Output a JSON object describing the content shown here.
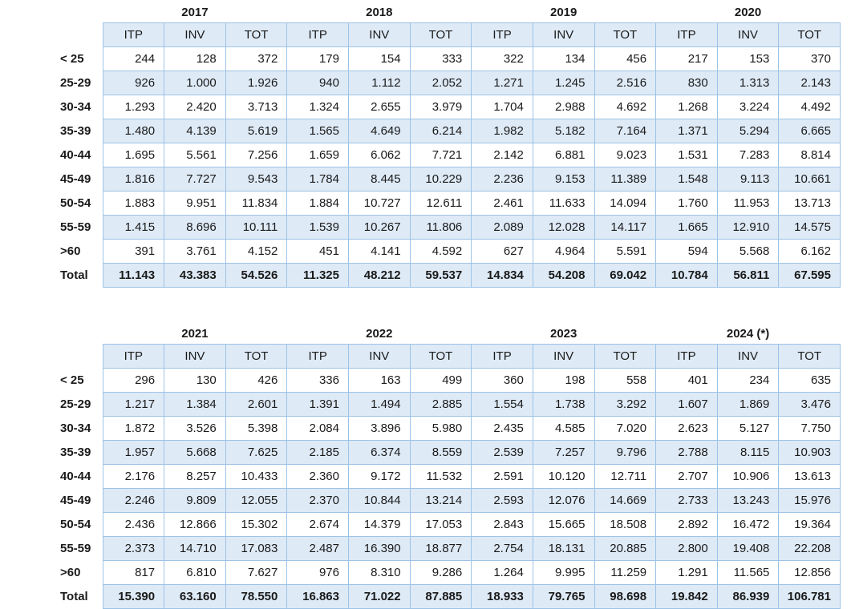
{
  "colors": {
    "band": "#deeaf6",
    "border": "#9dc3e6",
    "text": "#1a1a1a"
  },
  "document": {
    "tables": [
      {
        "year_headers": [
          "2017",
          "2018",
          "2019",
          "2020"
        ],
        "sub_headers": [
          "ITP",
          "INV",
          "TOT"
        ],
        "rows": [
          {
            "label": "< 25",
            "values": [
              "244",
              "128",
              "372",
              "179",
              "154",
              "333",
              "322",
              "134",
              "456",
              "217",
              "153",
              "370"
            ]
          },
          {
            "label": "25-29",
            "values": [
              "926",
              "1.000",
              "1.926",
              "940",
              "1.112",
              "2.052",
              "1.271",
              "1.245",
              "2.516",
              "830",
              "1.313",
              "2.143"
            ]
          },
          {
            "label": "30-34",
            "values": [
              "1.293",
              "2.420",
              "3.713",
              "1.324",
              "2.655",
              "3.979",
              "1.704",
              "2.988",
              "4.692",
              "1.268",
              "3.224",
              "4.492"
            ]
          },
          {
            "label": "35-39",
            "values": [
              "1.480",
              "4.139",
              "5.619",
              "1.565",
              "4.649",
              "6.214",
              "1.982",
              "5.182",
              "7.164",
              "1.371",
              "5.294",
              "6.665"
            ]
          },
          {
            "label": "40-44",
            "values": [
              "1.695",
              "5.561",
              "7.256",
              "1.659",
              "6.062",
              "7.721",
              "2.142",
              "6.881",
              "9.023",
              "1.531",
              "7.283",
              "8.814"
            ]
          },
          {
            "label": "45-49",
            "values": [
              "1.816",
              "7.727",
              "9.543",
              "1.784",
              "8.445",
              "10.229",
              "2.236",
              "9.153",
              "11.389",
              "1.548",
              "9.113",
              "10.661"
            ]
          },
          {
            "label": "50-54",
            "values": [
              "1.883",
              "9.951",
              "11.834",
              "1.884",
              "10.727",
              "12.611",
              "2.461",
              "11.633",
              "14.094",
              "1.760",
              "11.953",
              "13.713"
            ]
          },
          {
            "label": "55-59",
            "values": [
              "1.415",
              "8.696",
              "10.111",
              "1.539",
              "10.267",
              "11.806",
              "2.089",
              "12.028",
              "14.117",
              "1.665",
              "12.910",
              "14.575"
            ]
          },
          {
            "label": ">60",
            "values": [
              "391",
              "3.761",
              "4.152",
              "451",
              "4.141",
              "4.592",
              "627",
              "4.964",
              "5.591",
              "594",
              "5.568",
              "6.162"
            ]
          },
          {
            "label": "Total",
            "total": true,
            "values": [
              "11.143",
              "43.383",
              "54.526",
              "11.325",
              "48.212",
              "59.537",
              "14.834",
              "54.208",
              "69.042",
              "10.784",
              "56.811",
              "67.595"
            ]
          }
        ]
      },
      {
        "year_headers": [
          "2021",
          "2022",
          "2023",
          "2024 (*)"
        ],
        "sub_headers": [
          "ITP",
          "INV",
          "TOT"
        ],
        "rows": [
          {
            "label": "< 25",
            "values": [
              "296",
              "130",
              "426",
              "336",
              "163",
              "499",
              "360",
              "198",
              "558",
              "401",
              "234",
              "635"
            ]
          },
          {
            "label": "25-29",
            "values": [
              "1.217",
              "1.384",
              "2.601",
              "1.391",
              "1.494",
              "2.885",
              "1.554",
              "1.738",
              "3.292",
              "1.607",
              "1.869",
              "3.476"
            ]
          },
          {
            "label": "30-34",
            "values": [
              "1.872",
              "3.526",
              "5.398",
              "2.084",
              "3.896",
              "5.980",
              "2.435",
              "4.585",
              "7.020",
              "2.623",
              "5.127",
              "7.750"
            ]
          },
          {
            "label": "35-39",
            "values": [
              "1.957",
              "5.668",
              "7.625",
              "2.185",
              "6.374",
              "8.559",
              "2.539",
              "7.257",
              "9.796",
              "2.788",
              "8.115",
              "10.903"
            ]
          },
          {
            "label": "40-44",
            "values": [
              "2.176",
              "8.257",
              "10.433",
              "2.360",
              "9.172",
              "11.532",
              "2.591",
              "10.120",
              "12.711",
              "2.707",
              "10.906",
              "13.613"
            ]
          },
          {
            "label": "45-49",
            "values": [
              "2.246",
              "9.809",
              "12.055",
              "2.370",
              "10.844",
              "13.214",
              "2.593",
              "12.076",
              "14.669",
              "2.733",
              "13.243",
              "15.976"
            ]
          },
          {
            "label": "50-54",
            "values": [
              "2.436",
              "12.866",
              "15.302",
              "2.674",
              "14.379",
              "17.053",
              "2.843",
              "15.665",
              "18.508",
              "2.892",
              "16.472",
              "19.364"
            ]
          },
          {
            "label": "55-59",
            "values": [
              "2.373",
              "14.710",
              "17.083",
              "2.487",
              "16.390",
              "18.877",
              "2.754",
              "18.131",
              "20.885",
              "2.800",
              "19.408",
              "22.208"
            ]
          },
          {
            "label": ">60",
            "values": [
              "817",
              "6.810",
              "7.627",
              "976",
              "8.310",
              "9.286",
              "1.264",
              "9.995",
              "11.259",
              "1.291",
              "11.565",
              "12.856"
            ]
          },
          {
            "label": "Total",
            "total": true,
            "values": [
              "15.390",
              "63.160",
              "78.550",
              "16.863",
              "71.022",
              "87.885",
              "18.933",
              "79.765",
              "98.698",
              "19.842",
              "86.939",
              "106.781"
            ]
          }
        ]
      }
    ]
  }
}
